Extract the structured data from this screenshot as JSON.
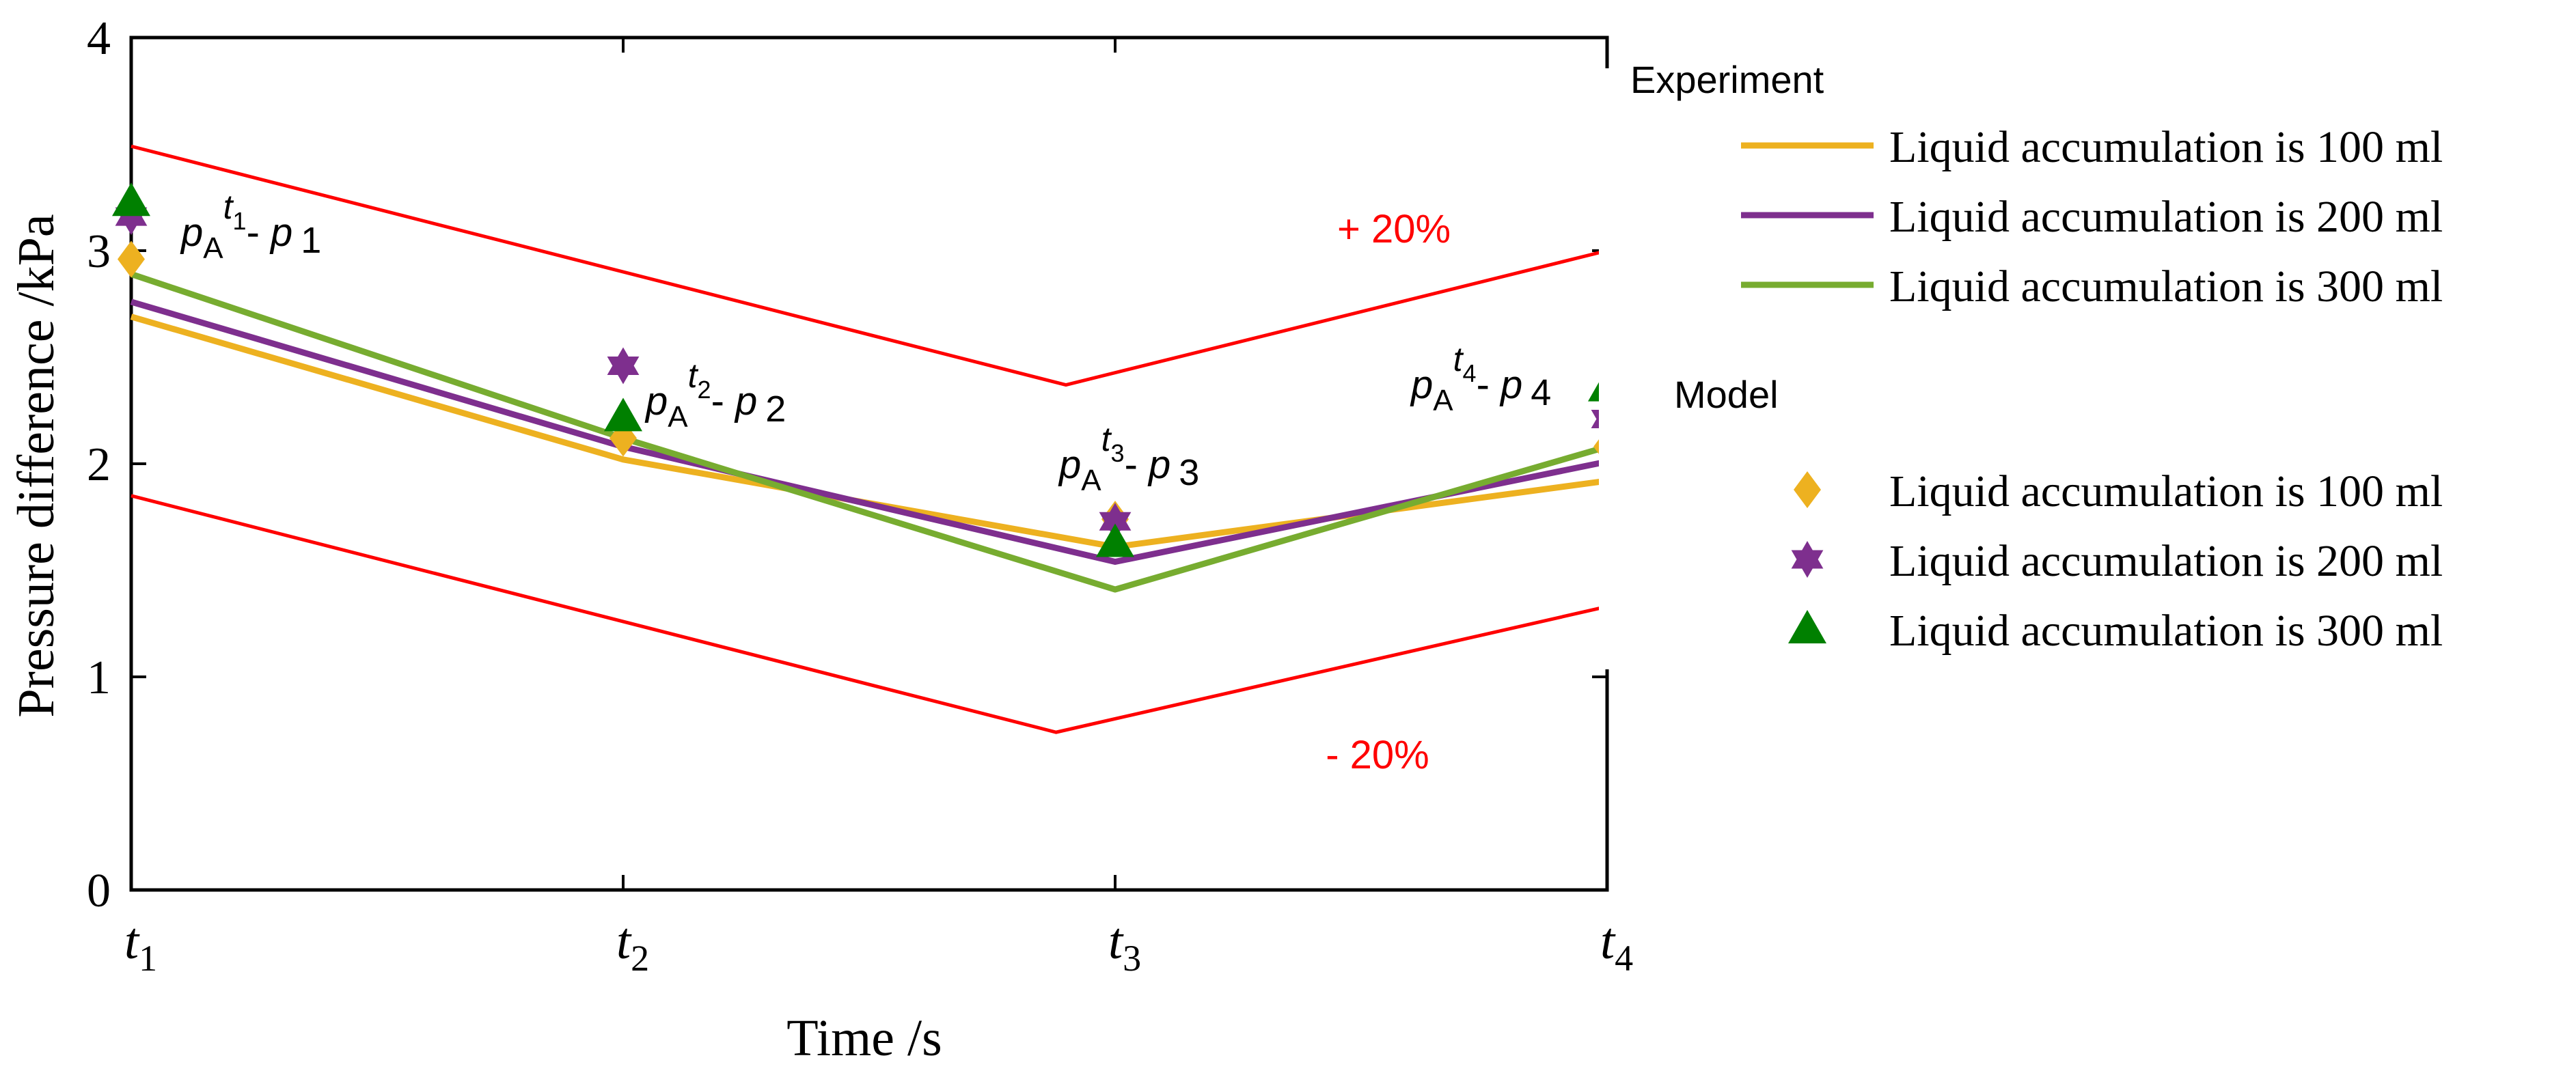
{
  "chart_data": {
    "type": "line",
    "xlabel": "Time /s",
    "ylabel": "Pressure difference /kPa",
    "categories": [
      {
        "base": "t",
        "sub": "1"
      },
      {
        "base": "t",
        "sub": "2"
      },
      {
        "base": "t",
        "sub": "3"
      },
      {
        "base": "t",
        "sub": "4"
      }
    ],
    "ylim": [
      0,
      4
    ],
    "yticks": [
      "0",
      "1",
      "2",
      "3",
      "4"
    ],
    "grid": false,
    "experiment": {
      "title": "Experiment",
      "series": [
        {
          "name": "Liquid accumulation is 100 ml",
          "color": "#EDB120",
          "values": [
            2.69,
            2.02,
            1.61,
            1.92
          ]
        },
        {
          "name": "Liquid accumulation is 200 ml",
          "color": "#7E2F8E",
          "values": [
            2.76,
            2.08,
            1.54,
            2.01
          ]
        },
        {
          "name": "Liquid accumulation is 300 ml",
          "color": "#77AC30",
          "values": [
            2.89,
            2.12,
            1.41,
            2.08
          ]
        }
      ]
    },
    "model": {
      "title": "Model",
      "series": [
        {
          "name": "Liquid accumulation is 100 ml",
          "color": "#EDB120",
          "marker": "diamond",
          "values": [
            2.96,
            2.12,
            1.74,
            2.08
          ]
        },
        {
          "name": "Liquid accumulation is 200 ml",
          "color": "#7E2F8E",
          "marker": "hexagram",
          "values": [
            3.16,
            2.46,
            1.73,
            2.21
          ]
        },
        {
          "name": "Liquid accumulation is 300 ml",
          "color": "#008000",
          "marker": "triangle",
          "values": [
            3.23,
            2.22,
            1.63,
            2.36
          ]
        }
      ]
    },
    "bounds": {
      "color": "#FF0000",
      "upper": {
        "label": "+ 20%",
        "x": [
          0,
          1.9,
          3
        ],
        "values": [
          3.49,
          2.37,
          3.0
        ]
      },
      "lower": {
        "label": "- 20%",
        "x": [
          0,
          1.88,
          3
        ],
        "values": [
          1.85,
          0.74,
          1.33
        ]
      }
    },
    "annotations": [
      {
        "p": "p",
        "A": "A",
        "t": "t",
        "tsub": "1",
        "dash": "- ",
        "p2": "p",
        "sub2": "1"
      },
      {
        "p": "p",
        "A": "A",
        "t": "t",
        "tsub": "2",
        "dash": "- ",
        "p2": "p",
        "sub2": "2"
      },
      {
        "p": "p",
        "A": "A",
        "t": "t",
        "tsub": "3",
        "dash": "- ",
        "p2": "p",
        "sub2": "3"
      },
      {
        "p": "p",
        "A": "A",
        "t": "t",
        "tsub": "4",
        "dash": "- ",
        "p2": "p",
        "sub2": "4"
      }
    ]
  }
}
